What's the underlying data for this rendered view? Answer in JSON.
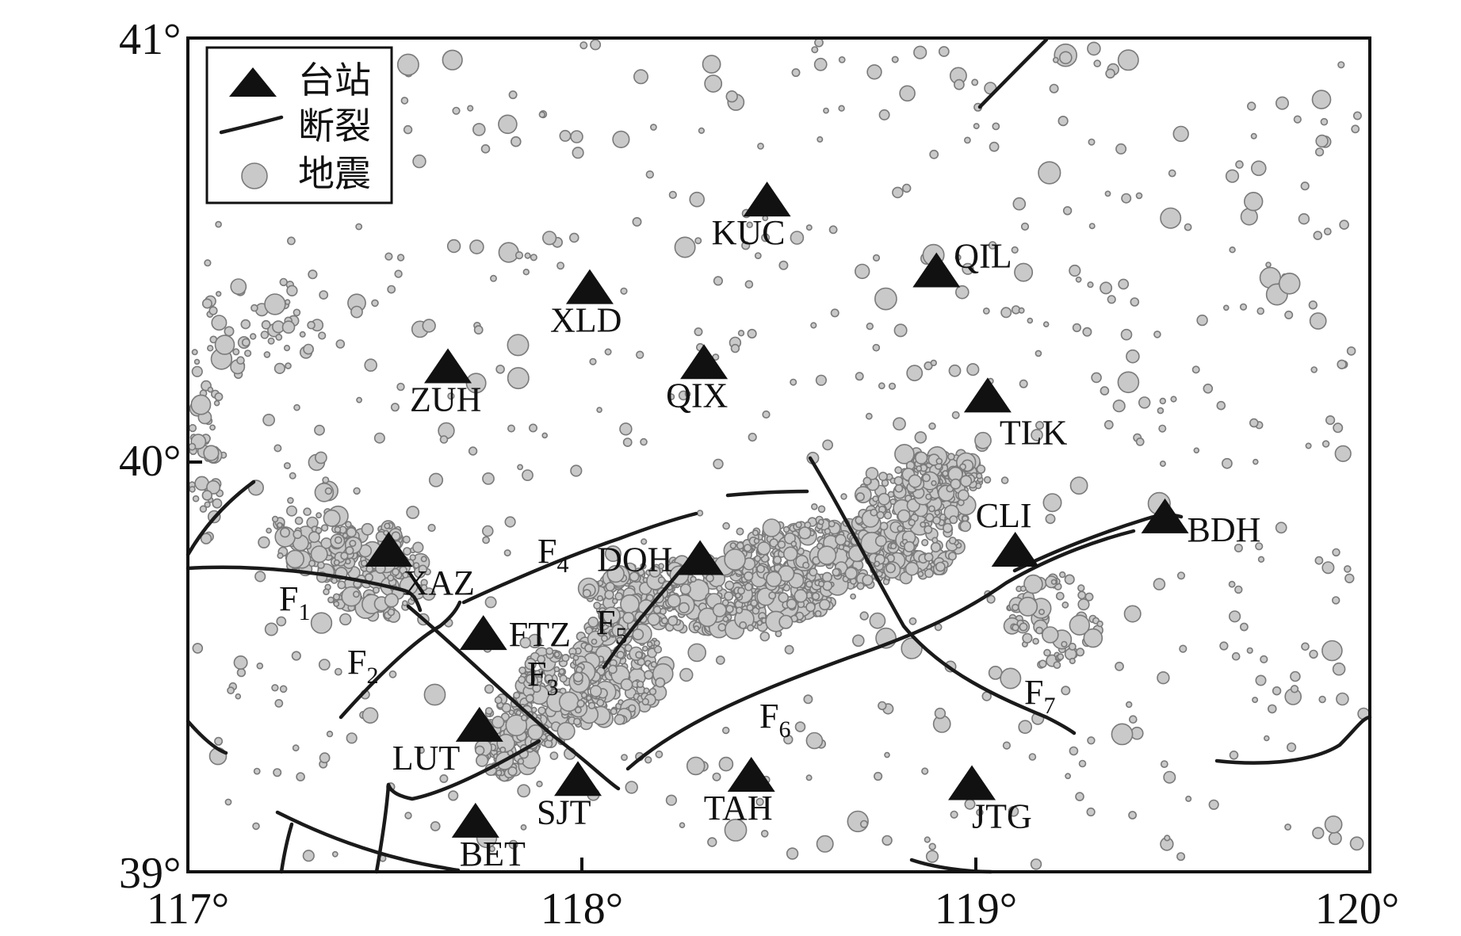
{
  "axes": {
    "x_ticks": [
      "117°",
      "118°",
      "119°",
      "120°"
    ],
    "y_ticks": [
      "39°",
      "40°",
      "41°"
    ],
    "lon_range": [
      117,
      120
    ],
    "lat_range": [
      39,
      41
    ]
  },
  "legend": {
    "station": "台站",
    "fault": "断裂",
    "quake": "地震"
  },
  "stations": [
    {
      "code": "KUC",
      "lon": 118.47,
      "lat": 40.61
    },
    {
      "code": "QIL",
      "lon": 118.9,
      "lat": 40.44
    },
    {
      "code": "XLD",
      "lon": 118.02,
      "lat": 40.4
    },
    {
      "code": "ZUH",
      "lon": 117.66,
      "lat": 40.21
    },
    {
      "code": "QIX",
      "lon": 118.31,
      "lat": 40.22
    },
    {
      "code": "TLK",
      "lon": 119.03,
      "lat": 40.14
    },
    {
      "code": "CLI",
      "lon": 119.1,
      "lat": 39.77
    },
    {
      "code": "BDH",
      "lon": 119.48,
      "lat": 39.85
    },
    {
      "code": "XAZ",
      "lon": 117.51,
      "lat": 39.77
    },
    {
      "code": "DOH",
      "lon": 118.3,
      "lat": 39.75
    },
    {
      "code": "FTZ",
      "lon": 117.75,
      "lat": 39.57
    },
    {
      "code": "LUT",
      "lon": 117.74,
      "lat": 39.35
    },
    {
      "code": "SJT",
      "lon": 117.99,
      "lat": 39.22
    },
    {
      "code": "TAH",
      "lon": 118.43,
      "lat": 39.23
    },
    {
      "code": "JTG",
      "lon": 118.99,
      "lat": 39.21
    },
    {
      "code": "BET",
      "lon": 117.73,
      "lat": 39.12
    }
  ],
  "faults": [
    {
      "name": "F",
      "sub": "1"
    },
    {
      "name": "F",
      "sub": "2"
    },
    {
      "name": "F",
      "sub": "3"
    },
    {
      "name": "F",
      "sub": "4"
    },
    {
      "name": "F",
      "sub": "5"
    },
    {
      "name": "F",
      "sub": "6"
    },
    {
      "name": "F",
      "sub": "7"
    }
  ],
  "colors": {
    "quake_fill": "#c9c9c9",
    "quake_stroke": "#7a7a7a",
    "station": "#111111",
    "fault": "#1a1a1a"
  }
}
